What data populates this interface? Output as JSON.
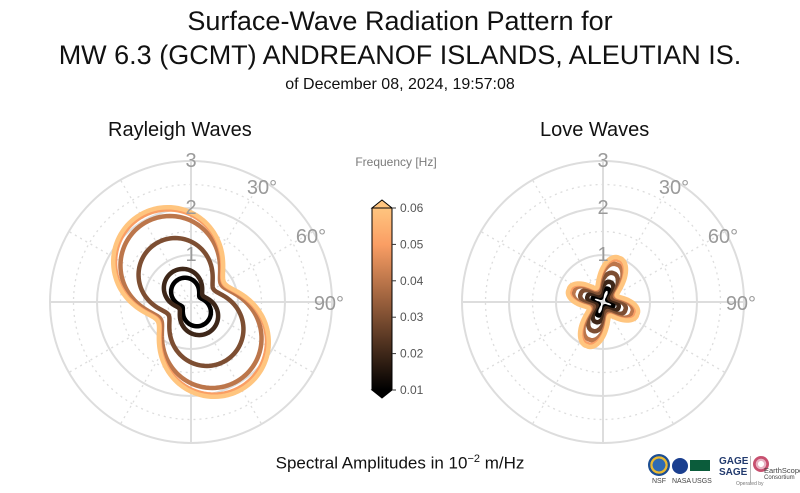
{
  "header": {
    "title_line1": "Surface-Wave Radiation Pattern for",
    "title_line2": "MW 6.3 (GCMT) ANDREANOF ISLANDS, ALEUTIAN IS.",
    "subtitle": "of December 08, 2024, 19:57:08"
  },
  "footer": {
    "label_prefix": "Spectral Amplitudes in 10",
    "label_exponent": "−2",
    "label_suffix": " m/Hz"
  },
  "logos": {
    "gage": "GAGE",
    "sage": "SAGE",
    "earthscope": "EarthScope",
    "consortium": "Consortium",
    "operated_by": "Operated by",
    "nsf": "NSF",
    "nasa": "NASA",
    "usgs": "USGS"
  },
  "chart_data": [
    {
      "type": "polar-line",
      "title": "Rayleigh Waves",
      "rmax": 3,
      "r_ticks": [
        1,
        2,
        3
      ],
      "r_tick_labels": [
        "1",
        "2",
        "3"
      ],
      "theta_ticks": [
        30,
        60,
        90
      ],
      "theta_tick_labels": [
        "30°",
        "60°",
        "90°"
      ],
      "theta_direction": "clockwise from north",
      "pattern": {
        "kind": "two-lobe",
        "lobe_azimuth_deg": 150,
        "gain": 0.38,
        "base": 0.7,
        "sharpness": 1.0
      },
      "series": [
        {
          "name": "0.01 Hz",
          "frequency_hz": 0.01,
          "max_amplitude": 0.55
        },
        {
          "name": "0.02 Hz",
          "frequency_hz": 0.02,
          "max_amplitude": 0.75
        },
        {
          "name": "0.03 Hz",
          "frequency_hz": 0.03,
          "max_amplitude": 1.45
        },
        {
          "name": "0.04 Hz",
          "frequency_hz": 0.04,
          "max_amplitude": 1.95
        },
        {
          "name": "0.05 Hz",
          "frequency_hz": 0.05,
          "max_amplitude": 2.1
        },
        {
          "name": "0.06 Hz",
          "frequency_hz": 0.06,
          "max_amplitude": 2.15
        }
      ]
    },
    {
      "type": "polar-line",
      "title": "Love Waves",
      "rmax": 3,
      "r_ticks": [
        1,
        2,
        3
      ],
      "r_tick_labels": [
        "1",
        "2",
        "3"
      ],
      "theta_ticks": [
        30,
        60,
        90
      ],
      "theta_tick_labels": [
        "30°",
        "60°",
        "90°"
      ],
      "theta_direction": "clockwise from north",
      "pattern": {
        "kind": "four-lobe",
        "lobe_azimuth_deg": 20,
        "secondary_lobe_ratio": 0.7,
        "sharpness": 2.0
      },
      "series": [
        {
          "name": "0.01 Hz",
          "frequency_hz": 0.01,
          "max_amplitude": 0.3
        },
        {
          "name": "0.02 Hz",
          "frequency_hz": 0.02,
          "max_amplitude": 0.45
        },
        {
          "name": "0.03 Hz",
          "frequency_hz": 0.03,
          "max_amplitude": 0.65
        },
        {
          "name": "0.04 Hz",
          "frequency_hz": 0.04,
          "max_amplitude": 0.85
        },
        {
          "name": "0.05 Hz",
          "frequency_hz": 0.05,
          "max_amplitude": 0.95
        },
        {
          "name": "0.06 Hz",
          "frequency_hz": 0.06,
          "max_amplitude": 1.0
        }
      ]
    }
  ],
  "colorbar": {
    "label": "Frequency [Hz]",
    "min": 0.01,
    "max": 0.06,
    "ticks": [
      0.01,
      0.02,
      0.03,
      0.04,
      0.05,
      0.06
    ],
    "tick_labels": [
      "0.01",
      "0.02",
      "0.03",
      "0.04",
      "0.05",
      "0.06"
    ],
    "colormap": "copper",
    "color_low": "#000000",
    "color_high": "#ffc57f"
  },
  "colors": {
    "grid": "#dddddd",
    "axis_text": "#9a9a9a",
    "title_text": "#111111"
  }
}
